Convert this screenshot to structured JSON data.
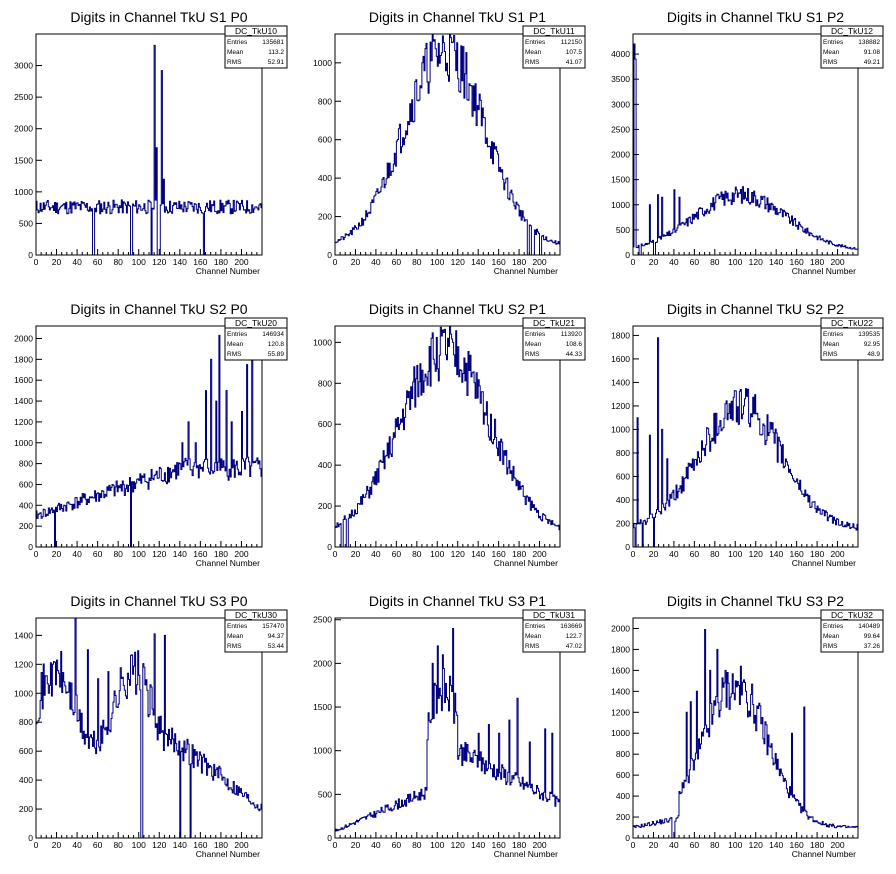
{
  "chart_data": [
    {
      "type": "histogram",
      "title": "Digits in Channel TkU S1 P0",
      "xlabel": "Channel Number",
      "ylabel": "",
      "xlim": [
        0,
        220
      ],
      "ylim": [
        0,
        3500
      ],
      "xticks": [
        0,
        20,
        40,
        60,
        80,
        100,
        120,
        140,
        160,
        180,
        200
      ],
      "yticks": [
        500,
        1000,
        1500,
        2000,
        2500,
        3000
      ],
      "stats": {
        "name": "DC_TkU10",
        "entries_label": "Entries",
        "entries": "135681",
        "mean_label": "Mean",
        "mean": "113.2",
        "rms_label": "RMS",
        "rms": "52.91"
      },
      "shape": "flat",
      "base": 760,
      "seed": 11,
      "spikes": [
        [
          115,
          3320
        ],
        [
          117,
          1700
        ],
        [
          122,
          2920
        ],
        [
          124,
          1200
        ]
      ],
      "zeros": [
        [
          55,
          57
        ],
        [
          92,
          94
        ],
        [
          112,
          113
        ],
        [
          118,
          121
        ],
        [
          163,
          164
        ]
      ]
    },
    {
      "type": "histogram",
      "title": "Digits in Channel TkU S1 P1",
      "xlabel": "Channel Number",
      "ylabel": "",
      "xlim": [
        0,
        220
      ],
      "ylim": [
        0,
        1150
      ],
      "xticks": [
        0,
        20,
        40,
        60,
        80,
        100,
        120,
        140,
        160,
        180,
        200
      ],
      "yticks": [
        200,
        400,
        600,
        800,
        1000
      ],
      "stats": {
        "name": "DC_TkU11",
        "entries_label": "Entries",
        "entries": "112150",
        "mean_label": "Mean",
        "mean": "107.5",
        "rms_label": "RMS",
        "rms": "41.07"
      },
      "shape": "bell",
      "peak": 1060,
      "center": 107,
      "sigma": 40,
      "floor": 40,
      "seed": 21,
      "spikes": [],
      "zeros": [
        [
          188,
          190
        ],
        [
          192,
          195
        ],
        [
          200,
          202
        ]
      ]
    },
    {
      "type": "histogram",
      "title": "Digits in Channel TkU S1 P2",
      "xlabel": "Channel Number",
      "ylabel": "",
      "xlim": [
        0,
        220
      ],
      "ylim": [
        0,
        4400
      ],
      "xticks": [
        0,
        20,
        40,
        60,
        80,
        100,
        120,
        140,
        160,
        180,
        200
      ],
      "yticks": [
        500,
        1000,
        1500,
        2000,
        2500,
        3000,
        3500,
        4000
      ],
      "stats": {
        "name": "DC_TkU12",
        "entries_label": "Entries",
        "entries": "138882",
        "mean_label": "Mean",
        "mean": "91.08",
        "rms_label": "RMS",
        "rms": "49.21"
      },
      "shape": "bell",
      "peak": 1200,
      "center": 105,
      "sigma": 45,
      "floor": 80,
      "seed": 31,
      "spikes": [
        [
          1,
          4200
        ],
        [
          2,
          3900
        ],
        [
          16,
          1000
        ],
        [
          24,
          1200
        ],
        [
          28,
          1150
        ],
        [
          40,
          1300
        ],
        [
          45,
          1150
        ]
      ],
      "zeros": [
        [
          6,
          8
        ],
        [
          20,
          22
        ]
      ]
    },
    {
      "type": "histogram",
      "title": "Digits in Channel TkU S2 P0",
      "xlabel": "Channel Number",
      "ylabel": "",
      "xlim": [
        0,
        220
      ],
      "ylim": [
        0,
        2120
      ],
      "xticks": [
        0,
        20,
        40,
        60,
        80,
        100,
        120,
        140,
        160,
        180,
        200
      ],
      "yticks": [
        200,
        400,
        600,
        800,
        1000,
        1200,
        1400,
        1600,
        1800,
        2000
      ],
      "stats": {
        "name": "DC_TkU20",
        "entries_label": "Entries",
        "entries": "146934",
        "mean_label": "Mean",
        "mean": "120.8",
        "rms_label": "RMS",
        "rms": "55.89"
      },
      "shape": "ramp",
      "start": 300,
      "end": 750,
      "seed": 41,
      "spikes": [
        [
          142,
          1000
        ],
        [
          148,
          1200
        ],
        [
          155,
          1000
        ],
        [
          165,
          1500
        ],
        [
          170,
          1800
        ],
        [
          175,
          1400
        ],
        [
          178,
          2030
        ],
        [
          185,
          1500
        ],
        [
          190,
          1200
        ],
        [
          200,
          1300
        ],
        [
          205,
          1750
        ],
        [
          210,
          2020
        ]
      ],
      "zeros": [
        [
          18,
          19
        ],
        [
          92,
          93
        ]
      ]
    },
    {
      "type": "histogram",
      "title": "Digits in Channel TkU S2 P1",
      "xlabel": "Channel Number",
      "ylabel": "",
      "xlim": [
        0,
        220
      ],
      "ylim": [
        0,
        1080
      ],
      "xticks": [
        0,
        20,
        40,
        60,
        80,
        100,
        120,
        140,
        160,
        180,
        200
      ],
      "yticks": [
        200,
        400,
        600,
        800,
        1000
      ],
      "stats": {
        "name": "DC_TkU21",
        "entries_label": "Entries",
        "entries": "113920",
        "mean_label": "Mean",
        "mean": "108.6",
        "rms_label": "RMS",
        "rms": "44.33"
      },
      "shape": "bell",
      "peak": 960,
      "center": 108,
      "sigma": 44,
      "floor": 60,
      "seed": 51,
      "spikes": [
        [
          110,
          1020
        ],
        [
          115,
          1000
        ]
      ],
      "zeros": [
        [
          6,
          8
        ],
        [
          11,
          13
        ]
      ]
    },
    {
      "type": "histogram",
      "title": "Digits in Channel TkU S2 P2",
      "xlabel": "Channel Number",
      "ylabel": "",
      "xlim": [
        0,
        220
      ],
      "ylim": [
        0,
        1880
      ],
      "xticks": [
        0,
        20,
        40,
        60,
        80,
        100,
        120,
        140,
        160,
        180,
        200
      ],
      "yticks": [
        200,
        400,
        600,
        800,
        1000,
        1200,
        1400,
        1600,
        1800
      ],
      "stats": {
        "name": "DC_TkU22",
        "entries_label": "Entries",
        "entries": "139535",
        "mean_label": "Mean",
        "mean": "92.95",
        "rms_label": "RMS",
        "rms": "48.9"
      },
      "shape": "bell",
      "peak": 1200,
      "center": 105,
      "sigma": 40,
      "floor": 150,
      "seed": 61,
      "spikes": [
        [
          4,
          1100
        ],
        [
          16,
          950
        ],
        [
          24,
          1780
        ],
        [
          28,
          1000
        ],
        [
          33,
          750
        ]
      ],
      "zeros": [
        [
          2,
          3
        ],
        [
          9,
          10
        ],
        [
          20,
          21
        ]
      ]
    },
    {
      "type": "histogram",
      "title": "Digits in Channel TkU S3 P0",
      "xlabel": "Channel Number",
      "ylabel": "",
      "xlim": [
        0,
        220
      ],
      "ylim": [
        0,
        1520
      ],
      "xticks": [
        0,
        20,
        40,
        60,
        80,
        100,
        120,
        140,
        160,
        180,
        200
      ],
      "yticks": [
        200,
        400,
        600,
        800,
        1000,
        1200,
        1400
      ],
      "stats": {
        "name": "DC_TkU30",
        "entries_label": "Entries",
        "entries": "157470",
        "mean_label": "Mean",
        "mean": "94.37",
        "rms_label": "RMS",
        "rms": "53.44"
      },
      "shape": "noisy",
      "base": 900,
      "seed": 71,
      "spikes": [
        [
          4,
          950
        ],
        [
          10,
          1120
        ],
        [
          16,
          1200
        ],
        [
          28,
          1050
        ],
        [
          38,
          1520
        ],
        [
          50,
          1300
        ],
        [
          60,
          1100
        ],
        [
          70,
          1150
        ],
        [
          115,
          1410
        ],
        [
          125,
          1400
        ]
      ],
      "zeros": [
        [
          102,
          104
        ],
        [
          140,
          141
        ],
        [
          150,
          151
        ]
      ]
    },
    {
      "type": "histogram",
      "title": "Digits in Channel TkU S3 P1",
      "xlabel": "Channel Number",
      "ylabel": "",
      "xlim": [
        0,
        220
      ],
      "ylim": [
        0,
        2520
      ],
      "xticks": [
        0,
        20,
        40,
        60,
        80,
        100,
        120,
        140,
        160,
        180,
        200
      ],
      "yticks": [
        500,
        1000,
        1500,
        2000,
        2500
      ],
      "stats": {
        "name": "DC_TkU31",
        "entries_label": "Entries",
        "entries": "163669",
        "mean_label": "Mean",
        "mean": "122.7",
        "rms_label": "RMS",
        "rms": "47.02"
      },
      "shape": "p1s3",
      "seed": 81,
      "spikes": [
        [
          95,
          2000
        ],
        [
          100,
          2200
        ],
        [
          105,
          2100
        ],
        [
          115,
          2400
        ],
        [
          140,
          1200
        ],
        [
          150,
          1300
        ],
        [
          160,
          1200
        ],
        [
          170,
          1350
        ],
        [
          178,
          1600
        ],
        [
          190,
          1100
        ],
        [
          205,
          1250
        ],
        [
          212,
          1200
        ]
      ],
      "zeros": []
    },
    {
      "type": "histogram",
      "title": "Digits in Channel TkU S3 P2",
      "xlabel": "Channel Number",
      "ylabel": "",
      "xlim": [
        0,
        220
      ],
      "ylim": [
        0,
        2100
      ],
      "xticks": [
        0,
        20,
        40,
        60,
        80,
        100,
        120,
        140,
        160,
        180,
        200
      ],
      "yticks": [
        200,
        400,
        600,
        800,
        1000,
        1200,
        1400,
        1600,
        1800,
        2000
      ],
      "stats": {
        "name": "DC_TkU32",
        "entries_label": "Entries",
        "entries": "140489",
        "mean_label": "Mean",
        "mean": "99.64",
        "rms_label": "RMS",
        "rms": "37.26"
      },
      "shape": "p2s3",
      "seed": 91,
      "spikes": [
        [
          52,
          1200
        ],
        [
          56,
          1300
        ],
        [
          62,
          1400
        ],
        [
          70,
          1990
        ],
        [
          75,
          1600
        ],
        [
          82,
          1800
        ],
        [
          90,
          1600
        ],
        [
          100,
          1500
        ],
        [
          110,
          1400
        ],
        [
          155,
          1000
        ],
        [
          167,
          1250
        ]
      ],
      "zeros": [
        [
          38,
          41
        ]
      ]
    }
  ],
  "colors": {
    "line": "#000080",
    "axis": "#000000",
    "background": "#ffffff"
  }
}
